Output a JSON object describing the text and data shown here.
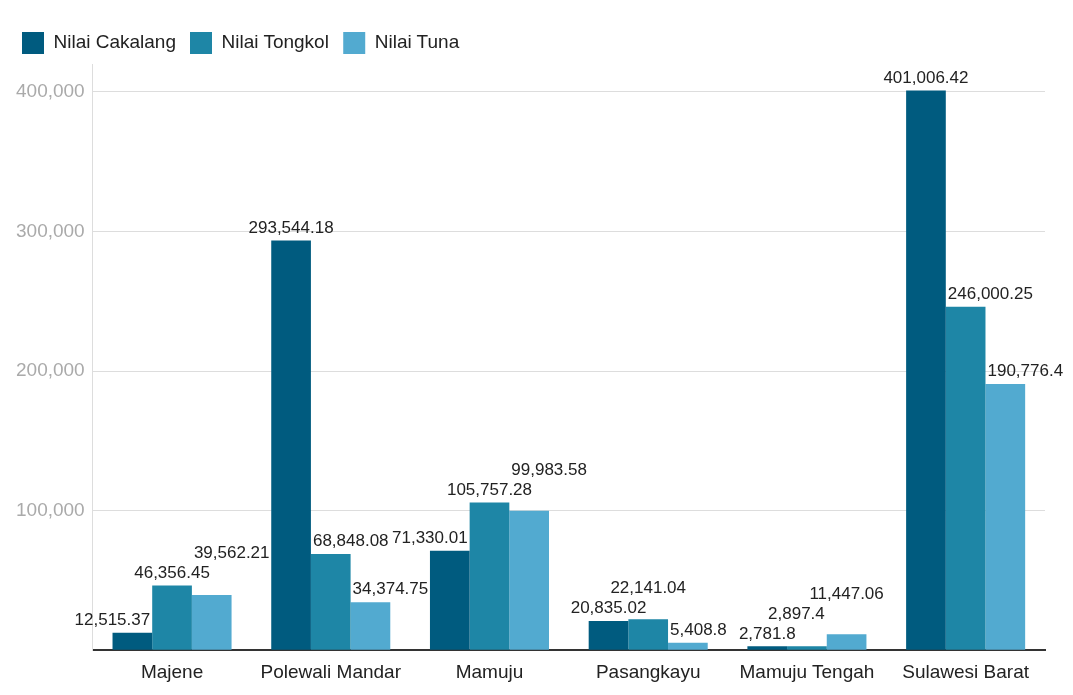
{
  "chart_data": {
    "type": "bar",
    "categories": [
      "Majene",
      "Polewali Mandar",
      "Mamuju",
      "Pasangkayu",
      "Mamuju Tengah",
      "Sulawesi Barat"
    ],
    "series": [
      {
        "name": "Nilai Cakalang",
        "color": "#005b7f",
        "values": [
          12515.37,
          293544.18,
          71330.01,
          20835.02,
          2781.8,
          401006.42
        ],
        "value_labels": [
          "12,515.37",
          "293,544.18",
          "71,330.01",
          "20,835.02",
          "2,781.8",
          "401,006.42"
        ]
      },
      {
        "name": "Nilai Tongkol",
        "color": "#1e86a6",
        "values": [
          46356.45,
          68848.08,
          105757.28,
          22141.04,
          2897.4,
          246000.25
        ],
        "value_labels": [
          "46,356.45",
          "68,848.08",
          "105,757.28",
          "22,141.04",
          "2,897.4",
          "246,000.25"
        ]
      },
      {
        "name": "Nilai Tuna",
        "color": "#52aad0",
        "values": [
          39562.21,
          34374.75,
          99983.58,
          5408.8,
          11447.06,
          190776.4
        ],
        "value_labels": [
          "39,562.21",
          "34,374.75",
          "99,983.58",
          "5,408.8",
          "11,447.06",
          "190,776.4"
        ]
      }
    ],
    "ylim": [
      0,
      420000
    ],
    "yticks": [
      {
        "value": 0,
        "label": null
      },
      {
        "value": 100000,
        "label": "100,000"
      },
      {
        "value": 200000,
        "label": "200,000"
      },
      {
        "value": 300000,
        "label": "300,000"
      },
      {
        "value": 400000,
        "label": "400,000"
      }
    ],
    "grid": "y",
    "legend": "top left"
  }
}
